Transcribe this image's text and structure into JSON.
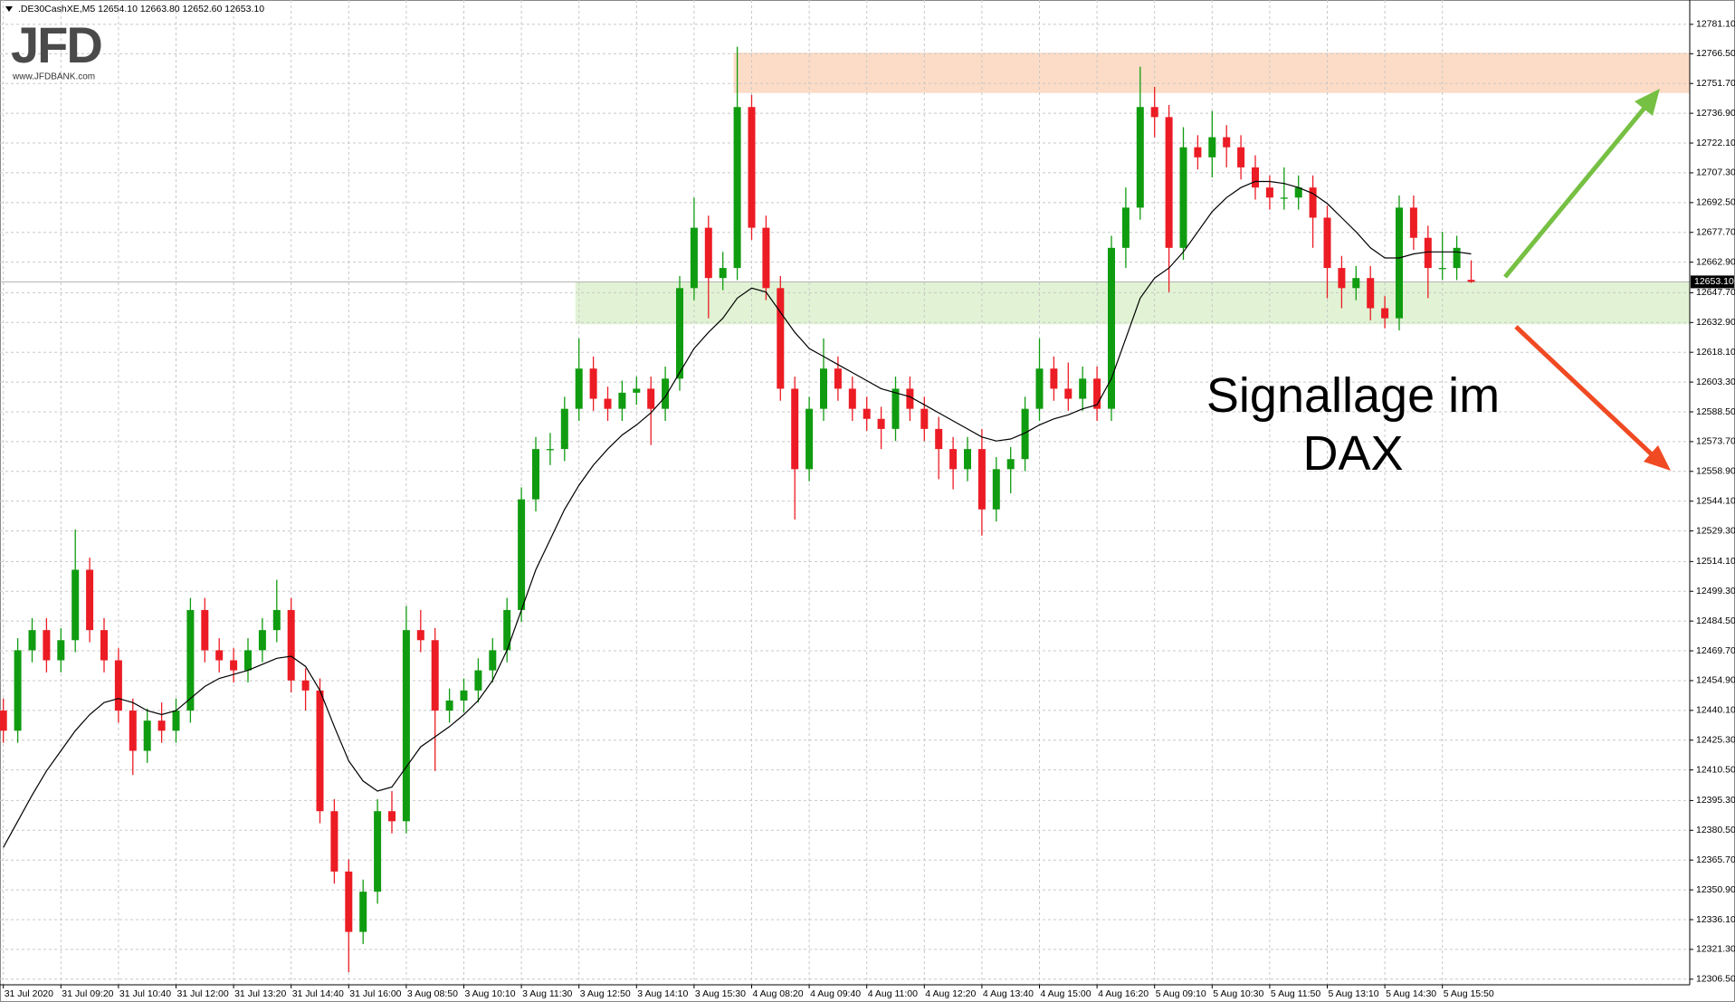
{
  "chart_data": {
    "type": "candlestick",
    "title": ".DE30CashXE,M5  12654.10 12663.80 12652.60 12653.10",
    "logo": "JFD",
    "logo_url": "www.JFDBANK.com",
    "annotation": "Signallage im DAX",
    "up_color": "#109c10",
    "down_color": "#ec1c24",
    "ma_color": "#000000",
    "grid": true,
    "categories": [
      "31 Jul 2020",
      null,
      null,
      null,
      "31 Jul 09:20",
      null,
      null,
      null,
      "31 Jul 10:40",
      null,
      null,
      null,
      "31 Jul 12:00",
      null,
      null,
      null,
      "31 Jul 13:20",
      null,
      null,
      null,
      "31 Jul 14:40",
      null,
      null,
      null,
      "31 Jul 16:00",
      null,
      null,
      null,
      "3 Aug 08:50",
      null,
      null,
      null,
      "3 Aug 10:10",
      null,
      null,
      null,
      "3 Aug 11:30",
      null,
      null,
      null,
      "3 Aug 12:50",
      null,
      null,
      null,
      "3 Aug 14:10",
      null,
      null,
      null,
      "3 Aug 15:30",
      null,
      null,
      null,
      "4 Aug 08:20",
      null,
      null,
      null,
      "4 Aug 09:40",
      null,
      null,
      null,
      "4 Aug 11:00",
      null,
      null,
      null,
      "4 Aug 12:20",
      null,
      null,
      null,
      "4 Aug 13:40",
      null,
      null,
      null,
      "4 Aug 15:00",
      null,
      null,
      null,
      "4 Aug 16:20",
      null,
      null,
      null,
      "5 Aug 09:10",
      null,
      null,
      null,
      "5 Aug 10:30",
      null,
      null,
      null,
      "5 Aug 11:50",
      null,
      null,
      null,
      "5 Aug 13:10",
      null,
      null,
      null,
      "5 Aug 14:30",
      null,
      null,
      null,
      "5 Aug 15:50",
      null,
      null
    ],
    "open": [
      12440,
      12430,
      12470,
      12480,
      12465,
      12475,
      12510,
      12480,
      12465,
      12440,
      12420,
      12435,
      12430,
      12440,
      12490,
      12470,
      12465,
      12460,
      12470,
      12480,
      12490,
      12455,
      12450,
      12390,
      12360,
      12330,
      12350,
      12390,
      12385,
      12480,
      12475,
      12440,
      12445,
      12450,
      12460,
      12470,
      12490,
      12545,
      12570,
      12570,
      12590,
      12610,
      12595,
      12590,
      12598,
      12600,
      12590,
      12605,
      12650,
      12680,
      12655,
      12660,
      12740,
      12680,
      12650,
      12600,
      12560,
      12590,
      12610,
      12600,
      12590,
      12585,
      12580,
      12600,
      12590,
      12580,
      12570,
      12560,
      12570,
      12540,
      12560,
      12565,
      12590,
      12610,
      12600,
      12595,
      12605,
      12590,
      12670,
      12690,
      12740,
      12735,
      12670,
      12720,
      12715,
      12725,
      12720,
      12710,
      12700,
      12695,
      12695,
      12700,
      12685,
      12660,
      12650,
      12655,
      12640,
      12635,
      12690,
      12675,
      12660,
      12660,
      12654.1
    ],
    "high": [
      12446,
      12476,
      12486,
      12486,
      12481,
      12530,
      12516,
      12486,
      12471,
      12446,
      12441,
      12444,
      12446,
      12496,
      12496,
      12476,
      12471,
      12476,
      12486,
      12505,
      12496,
      12461,
      12456,
      12396,
      12366,
      12356,
      12396,
      12400,
      12492,
      12490,
      12481,
      12451,
      12456,
      12466,
      12476,
      12496,
      12551,
      12576,
      12578,
      12596,
      12625,
      12616,
      12601,
      12604,
      12606,
      12606,
      12611,
      12656,
      12695,
      12686,
      12668,
      12770,
      12746,
      12686,
      12656,
      12606,
      12596,
      12625,
      12616,
      12606,
      12596,
      12591,
      12606,
      12606,
      12596,
      12586,
      12576,
      12576,
      12580,
      12566,
      12571,
      12596,
      12625,
      12616,
      12613,
      12611,
      12611,
      12676,
      12700,
      12760,
      12750,
      12741,
      12730,
      12726,
      12738,
      12731,
      12726,
      12716,
      12706,
      12710,
      12706,
      12706,
      12691,
      12666,
      12661,
      12661,
      12646,
      12696,
      12696,
      12681,
      12678,
      12676,
      12663.8
    ],
    "low": [
      12424,
      12424,
      12464,
      12459,
      12459,
      12469,
      12474,
      12459,
      12434,
      12408,
      12414,
      12424,
      12424,
      12434,
      12464,
      12459,
      12454,
      12454,
      12464,
      12474,
      12449,
      12440,
      12384,
      12354,
      12310,
      12324,
      12344,
      12379,
      12379,
      12469,
      12410,
      12434,
      12439,
      12444,
      12454,
      12464,
      12484,
      12539,
      12562,
      12564,
      12584,
      12589,
      12584,
      12584,
      12592,
      12572,
      12584,
      12599,
      12644,
      12635,
      12649,
      12654,
      12674,
      12644,
      12594,
      12535,
      12554,
      12584,
      12594,
      12584,
      12579,
      12570,
      12574,
      12584,
      12574,
      12555,
      12550,
      12554,
      12527,
      12534,
      12548,
      12559,
      12584,
      12594,
      12589,
      12589,
      12584,
      12584,
      12660,
      12684,
      12725,
      12648,
      12664,
      12709,
      12705,
      12710,
      12704,
      12694,
      12689,
      12689,
      12689,
      12670,
      12645,
      12640,
      12644,
      12634,
      12630,
      12629,
      12669,
      12645,
      12654,
      12654,
      12652.6
    ],
    "close": [
      12430,
      12470,
      12480,
      12465,
      12475,
      12510,
      12480,
      12465,
      12440,
      12420,
      12435,
      12430,
      12440,
      12490,
      12470,
      12465,
      12460,
      12470,
      12480,
      12490,
      12455,
      12450,
      12390,
      12360,
      12330,
      12350,
      12390,
      12385,
      12480,
      12475,
      12440,
      12445,
      12450,
      12460,
      12470,
      12490,
      12545,
      12570,
      12570,
      12590,
      12610,
      12595,
      12590,
      12598,
      12600,
      12590,
      12605,
      12650,
      12680,
      12655,
      12660,
      12740,
      12680,
      12650,
      12600,
      12560,
      12590,
      12610,
      12600,
      12590,
      12585,
      12580,
      12600,
      12590,
      12580,
      12570,
      12560,
      12570,
      12540,
      12560,
      12565,
      12590,
      12610,
      12600,
      12595,
      12605,
      12590,
      12670,
      12690,
      12740,
      12735,
      12670,
      12720,
      12715,
      12725,
      12720,
      12710,
      12700,
      12695,
      12695,
      12700,
      12685,
      12660,
      12650,
      12655,
      12640,
      12635,
      12690,
      12675,
      12660,
      12660,
      12670,
      12653.1
    ],
    "ma": [
      12372,
      12385,
      12398,
      12410,
      12420,
      12430,
      12438,
      12444,
      12446,
      12444,
      12440,
      12438,
      12440,
      12446,
      12452,
      12456,
      12458,
      12460,
      12463,
      12466,
      12467,
      12462,
      12450,
      12432,
      12415,
      12405,
      12400,
      12402,
      12412,
      12422,
      12427,
      12432,
      12438,
      12445,
      12455,
      12470,
      12490,
      12510,
      12525,
      12540,
      12552,
      12562,
      12570,
      12577,
      12582,
      12588,
      12596,
      12608,
      12620,
      12628,
      12635,
      12645,
      12650,
      12648,
      12638,
      12628,
      12620,
      12616,
      12612,
      12608,
      12604,
      12600,
      12598,
      12596,
      12592,
      12588,
      12584,
      12580,
      12576,
      12574,
      12575,
      12578,
      12582,
      12585,
      12587,
      12590,
      12592,
      12605,
      12625,
      12645,
      12655,
      12660,
      12668,
      12678,
      12688,
      12695,
      12700,
      12703,
      12703,
      12702,
      12700,
      12697,
      12692,
      12685,
      12678,
      12670,
      12665,
      12665,
      12667,
      12668,
      12668,
      12668,
      12667
    ],
    "zones": [
      {
        "from": 12747,
        "to": 12767,
        "color": "#fcdcc6"
      },
      {
        "from": 12632,
        "to": 12653,
        "color": "#e1f3d4"
      }
    ],
    "last_price": {
      "value": 12653.1,
      "label": "12653.10"
    },
    "ylim": [
      12300,
      12792
    ],
    "yticks": [
      {
        "value": 12781.1,
        "label": "12781.10"
      },
      {
        "value": 12766.5,
        "label": "12766.50"
      },
      {
        "value": 12751.7,
        "label": "12751.70"
      },
      {
        "value": 12736.9,
        "label": "12736.90"
      },
      {
        "value": 12722.1,
        "label": "12722.10"
      },
      {
        "value": 12707.3,
        "label": "12707.30"
      },
      {
        "value": 12692.5,
        "label": "12692.50"
      },
      {
        "value": 12677.7,
        "label": "12677.70"
      },
      {
        "value": 12662.9,
        "label": "12662.90"
      },
      {
        "value": 12647.7,
        "label": "12647.70"
      },
      {
        "value": 12632.9,
        "label": "12632.90"
      },
      {
        "value": 12618.1,
        "label": "12618.10"
      },
      {
        "value": 12603.3,
        "label": "12603.30"
      },
      {
        "value": 12588.5,
        "label": "12588.50"
      },
      {
        "value": 12573.7,
        "label": "12573.70"
      },
      {
        "value": 12558.9,
        "label": "12558.90"
      },
      {
        "value": 12544.1,
        "label": "12544.10"
      },
      {
        "value": 12529.3,
        "label": "12529.30"
      },
      {
        "value": 12514.1,
        "label": "12514.10"
      },
      {
        "value": 12499.3,
        "label": "12499.30"
      },
      {
        "value": 12484.5,
        "label": "12484.50"
      },
      {
        "value": 12469.7,
        "label": "12469.70"
      },
      {
        "value": 12454.9,
        "label": "12454.90"
      },
      {
        "value": 12440.1,
        "label": "12440.10"
      },
      {
        "value": 12425.3,
        "label": "12425.30"
      },
      {
        "value": 12410.5,
        "label": "12410.50"
      },
      {
        "value": 12395.3,
        "label": "12395.30"
      },
      {
        "value": 12380.5,
        "label": "12380.50"
      },
      {
        "value": 12365.7,
        "label": "12365.70"
      },
      {
        "value": 12350.9,
        "label": "12350.90"
      },
      {
        "value": 12336.1,
        "label": "12336.10"
      },
      {
        "value": 12321.3,
        "label": "12321.30"
      },
      {
        "value": 12306.5,
        "label": "12306.50"
      }
    ]
  }
}
